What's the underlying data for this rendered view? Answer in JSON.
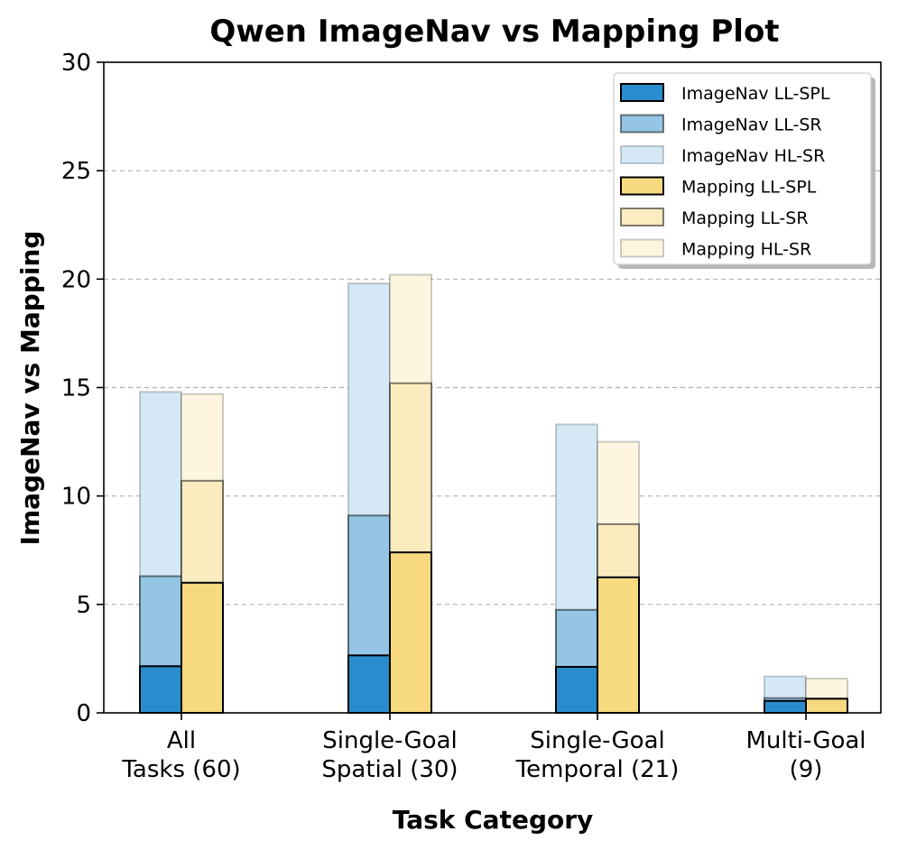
{
  "chart_data": {
    "type": "bar",
    "title": "Qwen ImageNav vs Mapping Plot",
    "xlabel": "Task Category",
    "ylabel": "ImageNav vs Mapping",
    "ylim": [
      0,
      30
    ],
    "yticks": [
      0,
      5,
      10,
      15,
      20,
      25,
      30
    ],
    "grid": "y-dashed",
    "legend_position": "top-right",
    "categories": [
      [
        "All",
        "Tasks (60)"
      ],
      [
        "Single-Goal",
        "Spatial (30)"
      ],
      [
        "Single-Goal",
        "Temporal (21)"
      ],
      [
        "Multi-Goal",
        "(9)"
      ]
    ],
    "groups": [
      {
        "name": "ImageNav",
        "layers": [
          {
            "name": "ImageNav LL-SPL",
            "values": [
              2.15,
              2.65,
              2.12,
              0.55
            ],
            "color": "#2a8ccc",
            "opacity": 1.0,
            "edge": "#000000",
            "edge_opacity": 1.0
          },
          {
            "name": "ImageNav LL-SR",
            "values": [
              6.3,
              9.1,
              4.75,
              0.68
            ],
            "color": "#2a8ccc",
            "opacity": 0.5,
            "edge": "#000000",
            "edge_opacity": 0.5
          },
          {
            "name": "ImageNav HL-SR",
            "values": [
              14.8,
              19.8,
              13.3,
              1.68
            ],
            "color": "#2a8ccc",
            "opacity": 0.2,
            "edge": "#000000",
            "edge_opacity": 0.2
          }
        ]
      },
      {
        "name": "Mapping",
        "layers": [
          {
            "name": "Mapping LL-SPL",
            "values": [
              6.0,
              7.4,
              6.25,
              0.65
            ],
            "color": "#f7d97f",
            "opacity": 1.0,
            "edge": "#000000",
            "edge_opacity": 1.0
          },
          {
            "name": "Mapping LL-SR",
            "values": [
              10.7,
              15.2,
              8.7,
              0.65
            ],
            "color": "#f7d97f",
            "opacity": 0.5,
            "edge": "#000000",
            "edge_opacity": 0.5
          },
          {
            "name": "Mapping HL-SR",
            "values": [
              14.7,
              20.2,
              12.5,
              1.58
            ],
            "color": "#f7d97f",
            "opacity": 0.25,
            "edge": "#000000",
            "edge_opacity": 0.2
          }
        ]
      }
    ]
  }
}
